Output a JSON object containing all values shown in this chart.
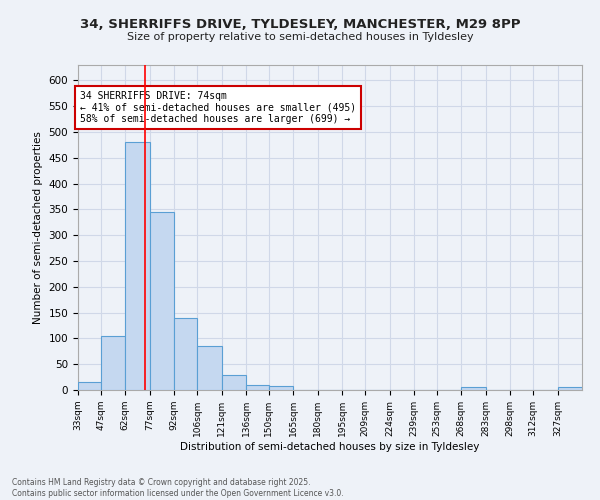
{
  "title1": "34, SHERRIFFS DRIVE, TYLDESLEY, MANCHESTER, M29 8PP",
  "title2": "Size of property relative to semi-detached houses in Tyldesley",
  "xlabel": "Distribution of semi-detached houses by size in Tyldesley",
  "ylabel": "Number of semi-detached properties",
  "categories": [
    "33sqm",
    "47sqm",
    "62sqm",
    "77sqm",
    "92sqm",
    "106sqm",
    "121sqm",
    "136sqm",
    "150sqm",
    "165sqm",
    "180sqm",
    "195sqm",
    "209sqm",
    "224sqm",
    "239sqm",
    "253sqm",
    "268sqm",
    "283sqm",
    "298sqm",
    "312sqm",
    "327sqm"
  ],
  "values": [
    15,
    105,
    480,
    345,
    140,
    85,
    30,
    10,
    7,
    0,
    0,
    0,
    0,
    0,
    0,
    0,
    5,
    0,
    0,
    0,
    5
  ],
  "bar_color": "#c5d8f0",
  "bar_edge_color": "#5a9fd4",
  "grid_color": "#d0d8e8",
  "background_color": "#eef2f8",
  "vline_x": 74,
  "bin_edges": [
    33,
    47,
    62,
    77,
    92,
    106,
    121,
    136,
    150,
    165,
    180,
    195,
    209,
    224,
    239,
    253,
    268,
    283,
    298,
    312,
    327,
    342
  ],
  "annotation_title": "34 SHERRIFFS DRIVE: 74sqm",
  "annotation_line2": "← 41% of semi-detached houses are smaller (495)",
  "annotation_line3": "58% of semi-detached houses are larger (699) →",
  "annotation_box_color": "#ffffff",
  "annotation_border_color": "#cc0000",
  "footer_line1": "Contains HM Land Registry data © Crown copyright and database right 2025.",
  "footer_line2": "Contains public sector information licensed under the Open Government Licence v3.0.",
  "ylim": [
    0,
    630
  ],
  "yticks": [
    0,
    50,
    100,
    150,
    200,
    250,
    300,
    350,
    400,
    450,
    500,
    550,
    600
  ]
}
